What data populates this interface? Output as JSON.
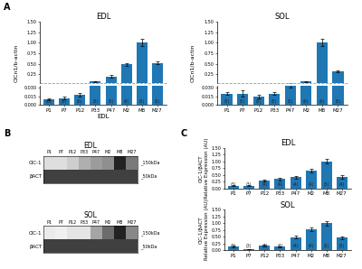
{
  "chart_data": [
    {
      "type": "bar",
      "title": "EDL",
      "xlabel": "EDL",
      "ylabel": "ClCn1/b-actin",
      "panel_label": "A",
      "categories": [
        "P1",
        "P7",
        "P12",
        "P33",
        "P47",
        "M2",
        "M8",
        "M27"
      ],
      "values": [
        0.01,
        0.012,
        0.018,
        0.075,
        0.2,
        0.48,
        1.0,
        0.52
      ],
      "errors": [
        0.002,
        0.002,
        0.003,
        0.01,
        0.025,
        0.035,
        0.08,
        0.04
      ],
      "annotations": [
        "(6)",
        "(6)",
        "(6)",
        "(5)",
        "(5)",
        "(6)",
        "(5)",
        "(5)"
      ],
      "reference_line": 0.033,
      "ylim": [
        0,
        1.5
      ],
      "yticks": [
        {
          "value": 0,
          "label": "0.000"
        },
        0.015,
        {
          "value": 0.03,
          "label": "0.030"
        },
        0.25,
        {
          "value": 0.5,
          "label": "0.50"
        },
        0.75,
        {
          "value": 1.0,
          "label": "1.00"
        },
        1.25,
        {
          "value": 1.5,
          "label": "1.50"
        }
      ]
    },
    {
      "type": "bar",
      "title": "SOL",
      "ylabel": "ClCn1/b-actin",
      "categories": [
        "P1",
        "P7",
        "P12",
        "P33",
        "P47",
        "M2",
        "M8",
        "M27"
      ],
      "values": [
        0.02,
        0.02,
        0.015,
        0.02,
        0.035,
        0.075,
        1.0,
        0.32
      ],
      "errors": [
        0.003,
        0.005,
        0.003,
        0.003,
        0.005,
        0.01,
        0.08,
        0.03
      ],
      "annotations": [
        "(5)",
        "(5)",
        "(5)",
        "(5)",
        "(5)",
        "(6)",
        "(6)",
        "(5)"
      ],
      "reference_line": 0.033,
      "ylim": [
        0,
        1.5
      ],
      "yticks": [
        {
          "value": 0,
          "label": "0.000"
        },
        0.015,
        {
          "value": 0.03,
          "label": "0.030"
        },
        0.25,
        {
          "value": 0.5,
          "label": "0.50"
        },
        0.75,
        {
          "value": 1.0,
          "label": "1.00"
        },
        1.25,
        {
          "value": 1.5,
          "label": "1.50"
        }
      ]
    },
    {
      "type": "heatmap",
      "title": "EDL",
      "panel_label": "B",
      "categories": [
        "P1",
        "P7",
        "P12",
        "P33",
        "P47",
        "M2",
        "M8",
        "M27"
      ],
      "rows": [
        "ClC-1",
        "βACT"
      ],
      "cells": [
        [
          0.22,
          0.22,
          0.3,
          0.42,
          0.48,
          0.52,
          0.88,
          0.6
        ],
        [
          0.8,
          0.8,
          0.8,
          0.8,
          0.8,
          0.8,
          0.8,
          0.8
        ]
      ],
      "annotations": [
        "_150kDa",
        "_50kDa"
      ],
      "clim": [
        0,
        1
      ]
    },
    {
      "type": "heatmap",
      "title": "SOL",
      "categories": [
        "P1",
        "P7",
        "P12",
        "P33",
        "P47",
        "M2",
        "M8",
        "M27"
      ],
      "rows": [
        "ClC-1",
        "βACT"
      ],
      "cells": [
        [
          0.15,
          0.12,
          0.18,
          0.18,
          0.45,
          0.65,
          0.88,
          0.55
        ],
        [
          0.8,
          0.8,
          0.8,
          0.8,
          0.8,
          0.8,
          0.8,
          0.8
        ]
      ],
      "annotations": [
        "_150kDa",
        "_50kDa"
      ],
      "clim": [
        0,
        1
      ]
    },
    {
      "type": "bar",
      "title": "EDL",
      "ylabel": "ClC-1/βACT\nRelative Expression (AU)",
      "panel_label": "C",
      "categories": [
        "P1",
        "P7",
        "P12",
        "P33",
        "P47",
        "M2",
        "M8",
        "M27"
      ],
      "values": [
        0.1,
        0.1,
        0.28,
        0.35,
        0.42,
        0.65,
        1.0,
        0.42
      ],
      "errors": [
        0.02,
        0.02,
        0.04,
        0.05,
        0.05,
        0.06,
        0.08,
        0.06
      ],
      "annotations": [
        "(3)",
        "(3)",
        "(4)",
        "(4)",
        "(4)",
        "(4)",
        "(5)",
        "(4)"
      ],
      "ylim": [
        0,
        1.5
      ],
      "yticks": [
        {
          "value": 0,
          "label": "0.00"
        },
        0.25,
        {
          "value": 0.5,
          "label": "0.50"
        },
        0.75,
        {
          "value": 1.0,
          "label": "1.00"
        },
        1.25,
        {
          "value": 1.5,
          "label": "1.50"
        }
      ]
    },
    {
      "type": "bar",
      "title": "SOL",
      "ylabel": "ClC-1/βACT\nRelative Expression (AU)",
      "categories": [
        "P1",
        "P7",
        "P12",
        "P33",
        "P47",
        "M2",
        "M8",
        "M27"
      ],
      "values": [
        0.15,
        0.04,
        0.17,
        0.13,
        0.48,
        0.78,
        1.0,
        0.47
      ],
      "errors": [
        0.03,
        0.01,
        0.03,
        0.02,
        0.05,
        0.07,
        0.08,
        0.05
      ],
      "annotations": [
        "(3)",
        "(3)",
        "(4)",
        "(4)",
        "(4)",
        "(4)",
        "(5)",
        "(5)"
      ],
      "ylim": [
        0,
        1.5
      ],
      "yticks": [
        {
          "value": 0,
          "label": "0.00"
        },
        0.25,
        {
          "value": 0.5,
          "label": "0.50"
        },
        0.75,
        {
          "value": 1.0,
          "label": "1.00"
        },
        1.25,
        {
          "value": 1.5,
          "label": "1.50"
        }
      ]
    }
  ]
}
